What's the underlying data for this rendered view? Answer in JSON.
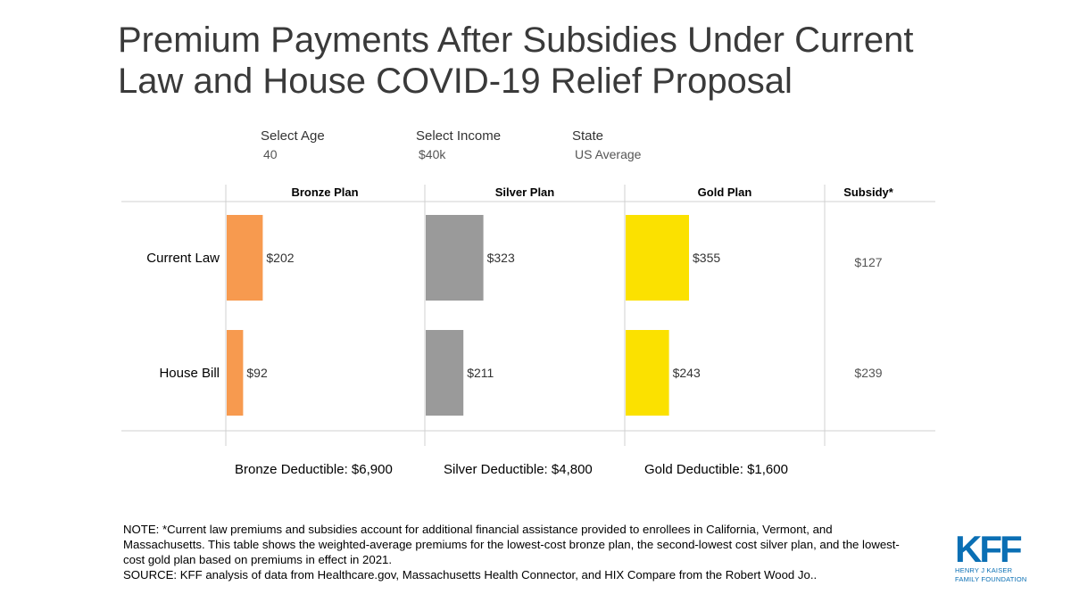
{
  "title_line1": "Premium Payments After Subsidies Under Current",
  "title_line2": "Law and House COVID-19 Relief Proposal",
  "filters": [
    {
      "label": "Select Age",
      "value": "40"
    },
    {
      "label": "Select Income",
      "value": "$40k"
    },
    {
      "label": "State",
      "value": "US Average"
    }
  ],
  "chart_data": {
    "type": "bar",
    "orientation": "horizontal",
    "panels": [
      "Bronze Plan",
      "Silver Plan",
      "Gold Plan"
    ],
    "categories": [
      "Current Law",
      "House Bill"
    ],
    "series": [
      {
        "name": "Bronze Plan",
        "values": [
          202,
          92
        ],
        "labels": [
          "$202",
          "$92"
        ],
        "color": "#f79a4f"
      },
      {
        "name": "Silver Plan",
        "values": [
          323,
          211
        ],
        "labels": [
          "$323",
          "$211"
        ],
        "color": "#9a9a9a"
      },
      {
        "name": "Gold Plan",
        "values": [
          355,
          243
        ],
        "labels": [
          "$355",
          "$243"
        ],
        "color": "#fbe100"
      }
    ],
    "subsidy_header": "Subsidy*",
    "subsidy": [
      {
        "category": "Current Law",
        "value": 127,
        "label": "$127"
      },
      {
        "category": "House Bill",
        "value": 239,
        "label": "$239"
      }
    ],
    "deductibles": [
      "Bronze Deductible: $6,900",
      "Silver Deductible: $4,800",
      "Gold Deductible: $1,600"
    ]
  },
  "note": "NOTE: *Current law premiums and subsidies account for additional financial assistance provided to enrollees in California, Vermont, and Massachusetts. This table shows the weighted-average premiums for the lowest-cost bronze plan, the second-lowest cost silver plan, and the lowest-cost gold plan based on premiums in effect in 2021.",
  "source": "SOURCE: KFF analysis of data from Healthcare.gov, Massachusetts Health Connector, and HIX Compare from the Robert Wood Jo..",
  "logo": {
    "mark": "KFF",
    "line1": "HENRY J KAISER",
    "line2": "FAMILY FOUNDATION",
    "color": "#0a6fb4"
  }
}
